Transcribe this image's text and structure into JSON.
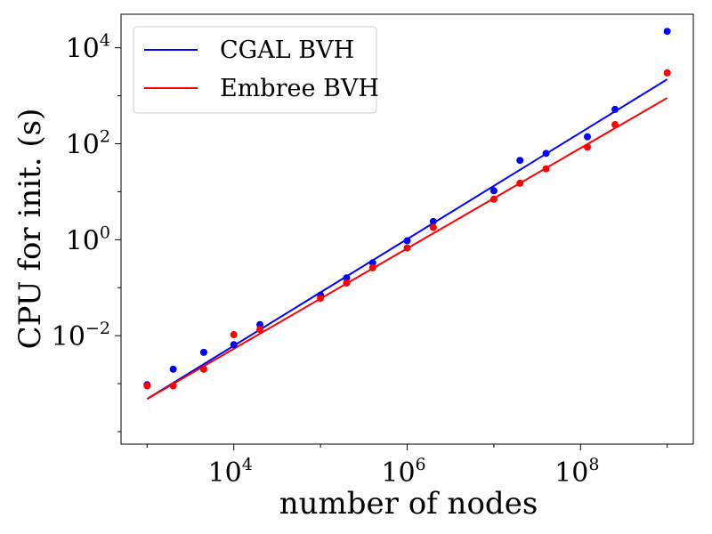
{
  "chart_data": {
    "type": "scatter",
    "xlabel": "number of nodes",
    "ylabel": "CPU for init. (s)",
    "xscale": "log",
    "yscale": "log",
    "xlim": [
      500,
      2000000000
    ],
    "ylim": [
      5.5e-05,
      50000
    ],
    "x_ticks": [
      {
        "base": "10",
        "exp": "4",
        "value": 10000
      },
      {
        "base": "10",
        "exp": "6",
        "value": 1000000
      },
      {
        "base": "10",
        "exp": "8",
        "value": 100000000
      }
    ],
    "y_ticks": [
      {
        "base": "10",
        "exp": "−2",
        "value": 0.01
      },
      {
        "base": "10",
        "exp": "0",
        "value": 1
      },
      {
        "base": "10",
        "exp": "2",
        "value": 100
      },
      {
        "base": "10",
        "exp": "4",
        "value": 10000
      }
    ],
    "legend_position": "top-left",
    "series": [
      {
        "name": "CGAL BVH",
        "color": "#0000ff",
        "points": [
          {
            "x": 1000,
            "y": 0.00095
          },
          {
            "x": 2000,
            "y": 0.002
          },
          {
            "x": 4500,
            "y": 0.0045
          },
          {
            "x": 10000,
            "y": 0.0065
          },
          {
            "x": 20000,
            "y": 0.017
          },
          {
            "x": 100000,
            "y": 0.07
          },
          {
            "x": 200000,
            "y": 0.16
          },
          {
            "x": 400000,
            "y": 0.33
          },
          {
            "x": 1000000,
            "y": 0.95
          },
          {
            "x": 2000000,
            "y": 2.4
          },
          {
            "x": 10000000,
            "y": 10.5
          },
          {
            "x": 20000000,
            "y": 45
          },
          {
            "x": 40000000,
            "y": 63
          },
          {
            "x": 120000000,
            "y": 140
          },
          {
            "x": 250000000,
            "y": 520
          },
          {
            "x": 1000000000,
            "y": 22000
          }
        ],
        "fit": {
          "x": [
            1000,
            1000000000
          ],
          "y": [
            0.00048,
            2200
          ]
        }
      },
      {
        "name": "Embree BVH",
        "color": "#ff0000",
        "points": [
          {
            "x": 1000,
            "y": 0.0009
          },
          {
            "x": 2000,
            "y": 0.0009
          },
          {
            "x": 4500,
            "y": 0.002
          },
          {
            "x": 10000,
            "y": 0.0105
          },
          {
            "x": 20000,
            "y": 0.0135
          },
          {
            "x": 100000,
            "y": 0.06
          },
          {
            "x": 200000,
            "y": 0.125
          },
          {
            "x": 400000,
            "y": 0.26
          },
          {
            "x": 1000000,
            "y": 0.67
          },
          {
            "x": 2000000,
            "y": 1.8
          },
          {
            "x": 10000000,
            "y": 7
          },
          {
            "x": 20000000,
            "y": 15
          },
          {
            "x": 40000000,
            "y": 30
          },
          {
            "x": 120000000,
            "y": 85
          },
          {
            "x": 250000000,
            "y": 250
          },
          {
            "x": 1000000000,
            "y": 3000
          }
        ],
        "fit": {
          "x": [
            1000,
            1000000000
          ],
          "y": [
            0.00048,
            900
          ]
        }
      }
    ]
  }
}
